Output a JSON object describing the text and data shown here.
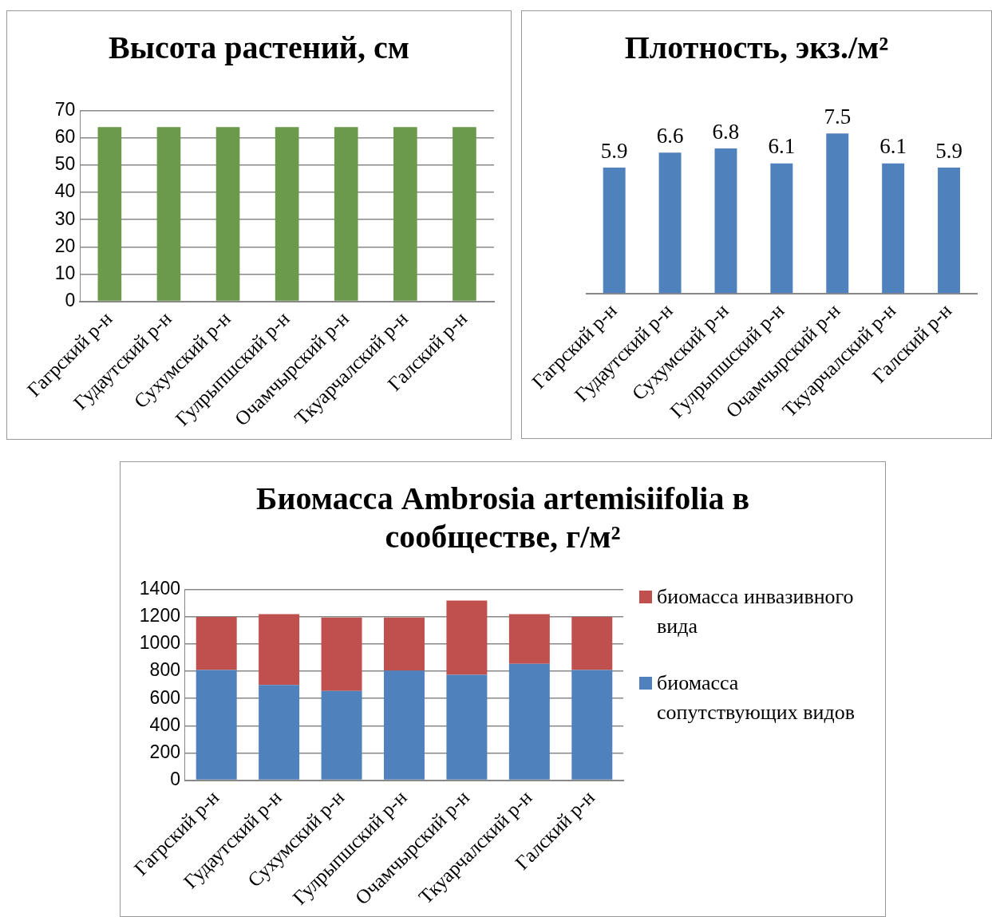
{
  "chart_data": [
    {
      "type": "bar",
      "title": "Высота растений, см",
      "categories": [
        "Гагрский р-н",
        "Гудаутский р-н",
        "Сухумский р-н",
        "Гулрыпшский р-н",
        "Очамчырский р-н",
        "Ткуарчалский р-н",
        "Галский р-н"
      ],
      "values": [
        64,
        64,
        64,
        64,
        64,
        64,
        64
      ],
      "color": "#6a9a4a",
      "ylim": [
        0,
        70
      ],
      "yticks": [
        0,
        10,
        20,
        30,
        40,
        50,
        60,
        70
      ],
      "grid": "y"
    },
    {
      "type": "bar",
      "title": "Плотность, экз./м²",
      "categories": [
        "Гагрский р-н",
        "Гудаутский р-н",
        "Сухумский р-н",
        "Гулрыпшский р-н",
        "Очамчырский р-н",
        "Ткуарчалский р-н",
        "Галский р-н"
      ],
      "values": [
        5.9,
        6.6,
        6.8,
        6.1,
        7.5,
        6.1,
        5.9
      ],
      "color": "#4f81bd",
      "data_labels": true,
      "tick_labels": "x"
    },
    {
      "type": "bar",
      "title": "Биомасса Ambrosia artemisiifolia в сообществе, г/м²",
      "categories": [
        "Гагрский р-н",
        "Гудаутский р-н",
        "Сухумский р-н",
        "Гулрыпшский р-н",
        "Очамчырский р-н",
        "Ткуарчалский р-н",
        "Галский р-н"
      ],
      "stacked": true,
      "legend": "right",
      "grid": "y",
      "ylim": [
        0,
        1400
      ],
      "yticks": [
        0,
        200,
        400,
        600,
        800,
        1000,
        1200,
        1400
      ],
      "series": [
        {
          "name": "биомасса сопутствующих видов",
          "color": "#4f81bd",
          "values": [
            810,
            700,
            655,
            805,
            775,
            855,
            810
          ]
        },
        {
          "name": "биомасса инвазивного вида",
          "color": "#c0504d",
          "values": [
            390,
            520,
            540,
            390,
            545,
            365,
            390
          ]
        }
      ]
    }
  ]
}
